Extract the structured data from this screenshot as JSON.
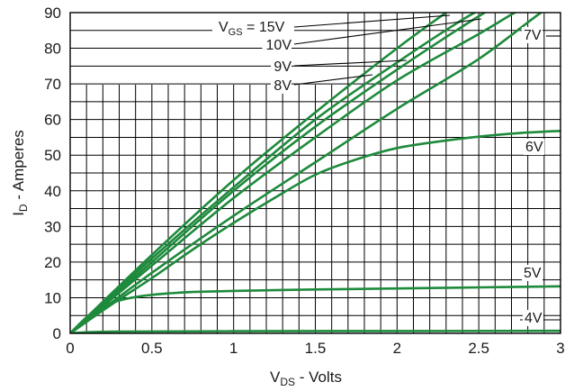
{
  "chart_data": {
    "type": "line",
    "xlabel": {
      "main": "V",
      "sub": "DS",
      "rest": " - Volts"
    },
    "ylabel": {
      "main": "I",
      "sub": "D",
      "rest": " - Amperes"
    },
    "xlim": [
      0,
      3
    ],
    "ylim": [
      0,
      90
    ],
    "x_ticks": [
      "0",
      "0.5",
      "1",
      "1.5",
      "2",
      "2.5",
      "3"
    ],
    "y_ticks": [
      "0",
      "10",
      "20",
      "30",
      "40",
      "50",
      "60",
      "70",
      "80",
      "90"
    ],
    "grid": true,
    "vgs_prefix": "V",
    "vgs_sub": "GS",
    "vgs_eq": " = 15V",
    "line_color": "#1e8a3c",
    "series": [
      {
        "name": "15V",
        "x": [
          0,
          0.5,
          1,
          1.5,
          2,
          2.3,
          2.62
        ],
        "y": [
          0,
          22,
          43,
          62,
          80,
          90,
          100
        ]
      },
      {
        "name": "10V",
        "x": [
          0,
          0.5,
          1,
          1.5,
          2,
          2.4,
          2.6,
          2.9
        ],
        "y": [
          0,
          21,
          41,
          60,
          76,
          88,
          93,
          100
        ]
      },
      {
        "name": "9V",
        "x": [
          0,
          0.5,
          1,
          1.5,
          2,
          2.5,
          2.7,
          3
        ],
        "y": [
          0,
          20,
          40,
          58,
          74,
          89,
          94,
          100
        ]
      },
      {
        "name": "8V",
        "x": [
          0,
          0.5,
          1,
          1.5,
          2,
          2.5,
          2.72,
          3
        ],
        "y": [
          0,
          19,
          38,
          55,
          71,
          84,
          90,
          97
        ]
      },
      {
        "name": "7V",
        "x": [
          0,
          0.5,
          1,
          1.5,
          2,
          2.5,
          2.88,
          3
        ],
        "y": [
          0,
          17,
          33,
          48,
          63,
          77,
          90,
          93
        ]
      },
      {
        "name": "6V",
        "x": [
          0,
          0.25,
          0.5,
          0.75,
          1,
          1.25,
          1.5,
          1.75,
          2,
          2.25,
          2.5,
          2.75,
          3
        ],
        "y": [
          0,
          8,
          15.5,
          23.5,
          31,
          38,
          44.5,
          48.8,
          52,
          53.8,
          55.2,
          56.2,
          56.8
        ]
      },
      {
        "name": "5V",
        "x": [
          0,
          0.1,
          0.2,
          0.3,
          0.4,
          0.5,
          0.6,
          0.75,
          1,
          1.5,
          2,
          2.5,
          3
        ],
        "y": [
          0,
          4.5,
          7.6,
          9.2,
          10.2,
          10.8,
          11.2,
          11.6,
          11.9,
          12.3,
          12.6,
          12.9,
          13.2
        ]
      },
      {
        "name": "4V",
        "x": [
          0,
          0.1,
          0.3,
          1,
          2,
          3
        ],
        "y": [
          0,
          0.3,
          0.5,
          0.6,
          0.65,
          0.7
        ]
      }
    ]
  }
}
